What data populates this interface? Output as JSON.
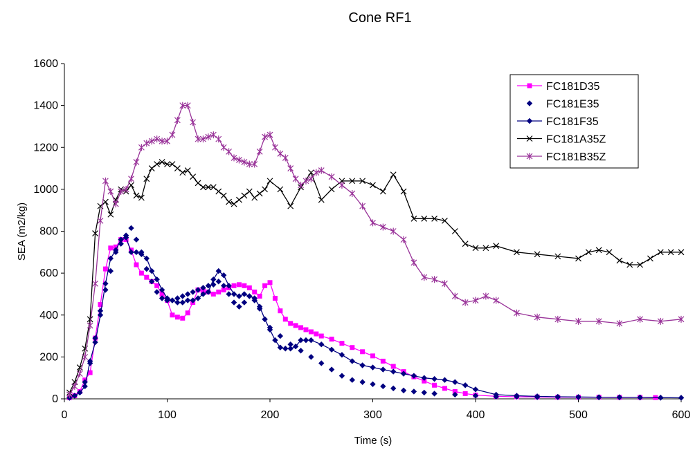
{
  "chart_data": {
    "type": "line",
    "title": "Cone RF1",
    "xlabel": "Time (s)",
    "ylabel": "SEA (m2/kg)",
    "xlim": [
      0,
      600
    ],
    "ylim": [
      0,
      1600
    ],
    "xticks": [
      "0",
      "100",
      "200",
      "300",
      "400",
      "500",
      "600"
    ],
    "yticks": [
      "0",
      "200",
      "400",
      "600",
      "800",
      "1000",
      "1200",
      "1400",
      "1600"
    ],
    "grid": false,
    "legend_position": "top-right",
    "series": [
      {
        "name": "FC181D35",
        "color": "#ff00ff",
        "marker": "square",
        "x": [
          5,
          10,
          15,
          20,
          25,
          30,
          35,
          40,
          45,
          50,
          55,
          60,
          65,
          70,
          75,
          80,
          85,
          90,
          95,
          100,
          105,
          110,
          115,
          120,
          125,
          130,
          135,
          140,
          145,
          150,
          155,
          160,
          165,
          170,
          175,
          180,
          185,
          190,
          195,
          200,
          205,
          210,
          215,
          220,
          225,
          230,
          235,
          240,
          245,
          250,
          260,
          270,
          280,
          290,
          300,
          310,
          320,
          330,
          340,
          350,
          360,
          370,
          380,
          390,
          400,
          420,
          440,
          460,
          480,
          500,
          520,
          540,
          560,
          575
        ],
        "y": [
          5,
          15,
          35,
          90,
          125,
          290,
          450,
          620,
          720,
          725,
          760,
          760,
          710,
          640,
          600,
          580,
          560,
          540,
          500,
          470,
          400,
          390,
          385,
          410,
          460,
          520,
          515,
          510,
          500,
          510,
          520,
          530,
          540,
          545,
          540,
          530,
          510,
          490,
          540,
          555,
          480,
          420,
          380,
          360,
          350,
          340,
          330,
          320,
          310,
          300,
          285,
          265,
          245,
          225,
          205,
          180,
          155,
          130,
          105,
          85,
          65,
          50,
          35,
          25,
          18,
          12,
          10,
          9,
          8,
          8,
          8,
          7,
          7,
          6
        ]
      },
      {
        "name": "FC181E35",
        "color": "#000080",
        "marker": "diamond",
        "x": [
          5,
          10,
          15,
          20,
          25,
          30,
          35,
          40,
          45,
          50,
          55,
          60,
          65,
          70,
          75,
          80,
          85,
          90,
          95,
          100,
          105,
          110,
          115,
          120,
          125,
          130,
          135,
          140,
          145,
          150,
          155,
          160,
          165,
          170,
          175,
          180,
          185,
          190,
          195,
          200,
          210,
          220,
          230,
          240,
          250,
          260,
          270,
          280,
          290,
          300,
          310,
          320,
          330,
          340,
          350,
          360,
          380,
          400,
          420,
          440,
          460,
          480,
          500,
          520,
          540,
          560,
          580,
          600
        ],
        "y": [
          5,
          15,
          30,
          80,
          170,
          290,
          420,
          520,
          610,
          700,
          740,
          780,
          815,
          760,
          700,
          620,
          560,
          510,
          480,
          470,
          470,
          480,
          490,
          500,
          510,
          520,
          530,
          540,
          545,
          560,
          540,
          500,
          460,
          440,
          460,
          490,
          470,
          430,
          380,
          340,
          300,
          260,
          230,
          200,
          170,
          140,
          110,
          90,
          80,
          70,
          60,
          50,
          40,
          35,
          30,
          25,
          20,
          15,
          10,
          10,
          8,
          8,
          8,
          7,
          7,
          6,
          5,
          5
        ]
      },
      {
        "name": "FC181F35",
        "color": "#000080",
        "marker": "diamond",
        "x": [
          5,
          10,
          15,
          20,
          25,
          30,
          35,
          40,
          45,
          50,
          55,
          60,
          65,
          70,
          75,
          80,
          85,
          90,
          95,
          100,
          105,
          110,
          115,
          120,
          125,
          130,
          135,
          140,
          145,
          150,
          155,
          160,
          165,
          170,
          175,
          180,
          185,
          190,
          195,
          200,
          205,
          210,
          215,
          220,
          225,
          230,
          235,
          240,
          250,
          260,
          270,
          280,
          290,
          300,
          310,
          320,
          330,
          340,
          350,
          360,
          370,
          380,
          390,
          400,
          420,
          440,
          460,
          480,
          500,
          520,
          540,
          560,
          580,
          600
        ],
        "y": [
          5,
          15,
          30,
          60,
          180,
          270,
          400,
          550,
          670,
          710,
          760,
          770,
          700,
          700,
          690,
          670,
          610,
          570,
          520,
          480,
          470,
          460,
          460,
          470,
          470,
          480,
          500,
          510,
          570,
          610,
          590,
          540,
          500,
          490,
          500,
          490,
          480,
          440,
          380,
          330,
          280,
          245,
          240,
          240,
          250,
          280,
          280,
          280,
          260,
          235,
          210,
          180,
          160,
          150,
          140,
          130,
          120,
          110,
          100,
          95,
          90,
          80,
          65,
          45,
          20,
          15,
          12,
          10,
          9,
          8,
          8,
          7,
          6,
          5
        ]
      },
      {
        "name": "FC181A35Z",
        "color": "#000000",
        "marker": "x",
        "x": [
          5,
          10,
          15,
          20,
          25,
          30,
          35,
          40,
          45,
          50,
          55,
          60,
          65,
          70,
          75,
          80,
          85,
          90,
          95,
          100,
          105,
          110,
          115,
          120,
          125,
          130,
          135,
          140,
          145,
          150,
          155,
          160,
          165,
          170,
          175,
          180,
          185,
          190,
          195,
          200,
          210,
          220,
          230,
          240,
          250,
          260,
          270,
          280,
          290,
          300,
          310,
          320,
          330,
          340,
          350,
          360,
          370,
          380,
          390,
          400,
          410,
          420,
          440,
          460,
          480,
          500,
          510,
          520,
          530,
          540,
          550,
          560,
          570,
          580,
          590,
          600
        ],
        "y": [
          30,
          80,
          150,
          240,
          380,
          790,
          920,
          940,
          880,
          950,
          1000,
          990,
          1020,
          970,
          960,
          1050,
          1100,
          1120,
          1130,
          1120,
          1120,
          1100,
          1080,
          1090,
          1060,
          1030,
          1010,
          1010,
          1010,
          990,
          970,
          940,
          930,
          950,
          970,
          990,
          960,
          980,
          1000,
          1040,
          1000,
          920,
          1010,
          1080,
          950,
          1000,
          1040,
          1040,
          1040,
          1020,
          990,
          1070,
          990,
          860,
          860,
          860,
          850,
          800,
          740,
          720,
          720,
          730,
          700,
          690,
          680,
          670,
          700,
          710,
          700,
          660,
          640,
          640,
          670,
          700,
          700,
          700
        ]
      },
      {
        "name": "FC181B35Z",
        "color": "#993399",
        "marker": "asterisk",
        "x": [
          5,
          10,
          15,
          20,
          25,
          30,
          35,
          40,
          45,
          50,
          55,
          60,
          65,
          70,
          75,
          80,
          85,
          90,
          95,
          100,
          105,
          110,
          115,
          120,
          125,
          130,
          135,
          140,
          145,
          150,
          155,
          160,
          165,
          170,
          175,
          180,
          185,
          190,
          195,
          200,
          205,
          210,
          215,
          220,
          225,
          230,
          235,
          240,
          245,
          250,
          260,
          270,
          280,
          290,
          300,
          310,
          320,
          330,
          340,
          350,
          360,
          370,
          380,
          390,
          400,
          410,
          420,
          440,
          460,
          480,
          500,
          520,
          540,
          560,
          580,
          600
        ],
        "y": [
          20,
          60,
          120,
          200,
          350,
          550,
          850,
          1040,
          990,
          930,
          990,
          1000,
          1050,
          1130,
          1200,
          1220,
          1230,
          1240,
          1230,
          1230,
          1260,
          1330,
          1400,
          1400,
          1320,
          1240,
          1240,
          1250,
          1260,
          1240,
          1200,
          1180,
          1150,
          1140,
          1130,
          1120,
          1120,
          1180,
          1250,
          1260,
          1200,
          1170,
          1150,
          1100,
          1050,
          1020,
          1040,
          1050,
          1080,
          1090,
          1060,
          1020,
          980,
          920,
          840,
          820,
          800,
          760,
          650,
          580,
          570,
          550,
          490,
          460,
          470,
          490,
          470,
          410,
          390,
          380,
          370,
          370,
          360,
          380,
          370,
          380
        ]
      }
    ]
  }
}
